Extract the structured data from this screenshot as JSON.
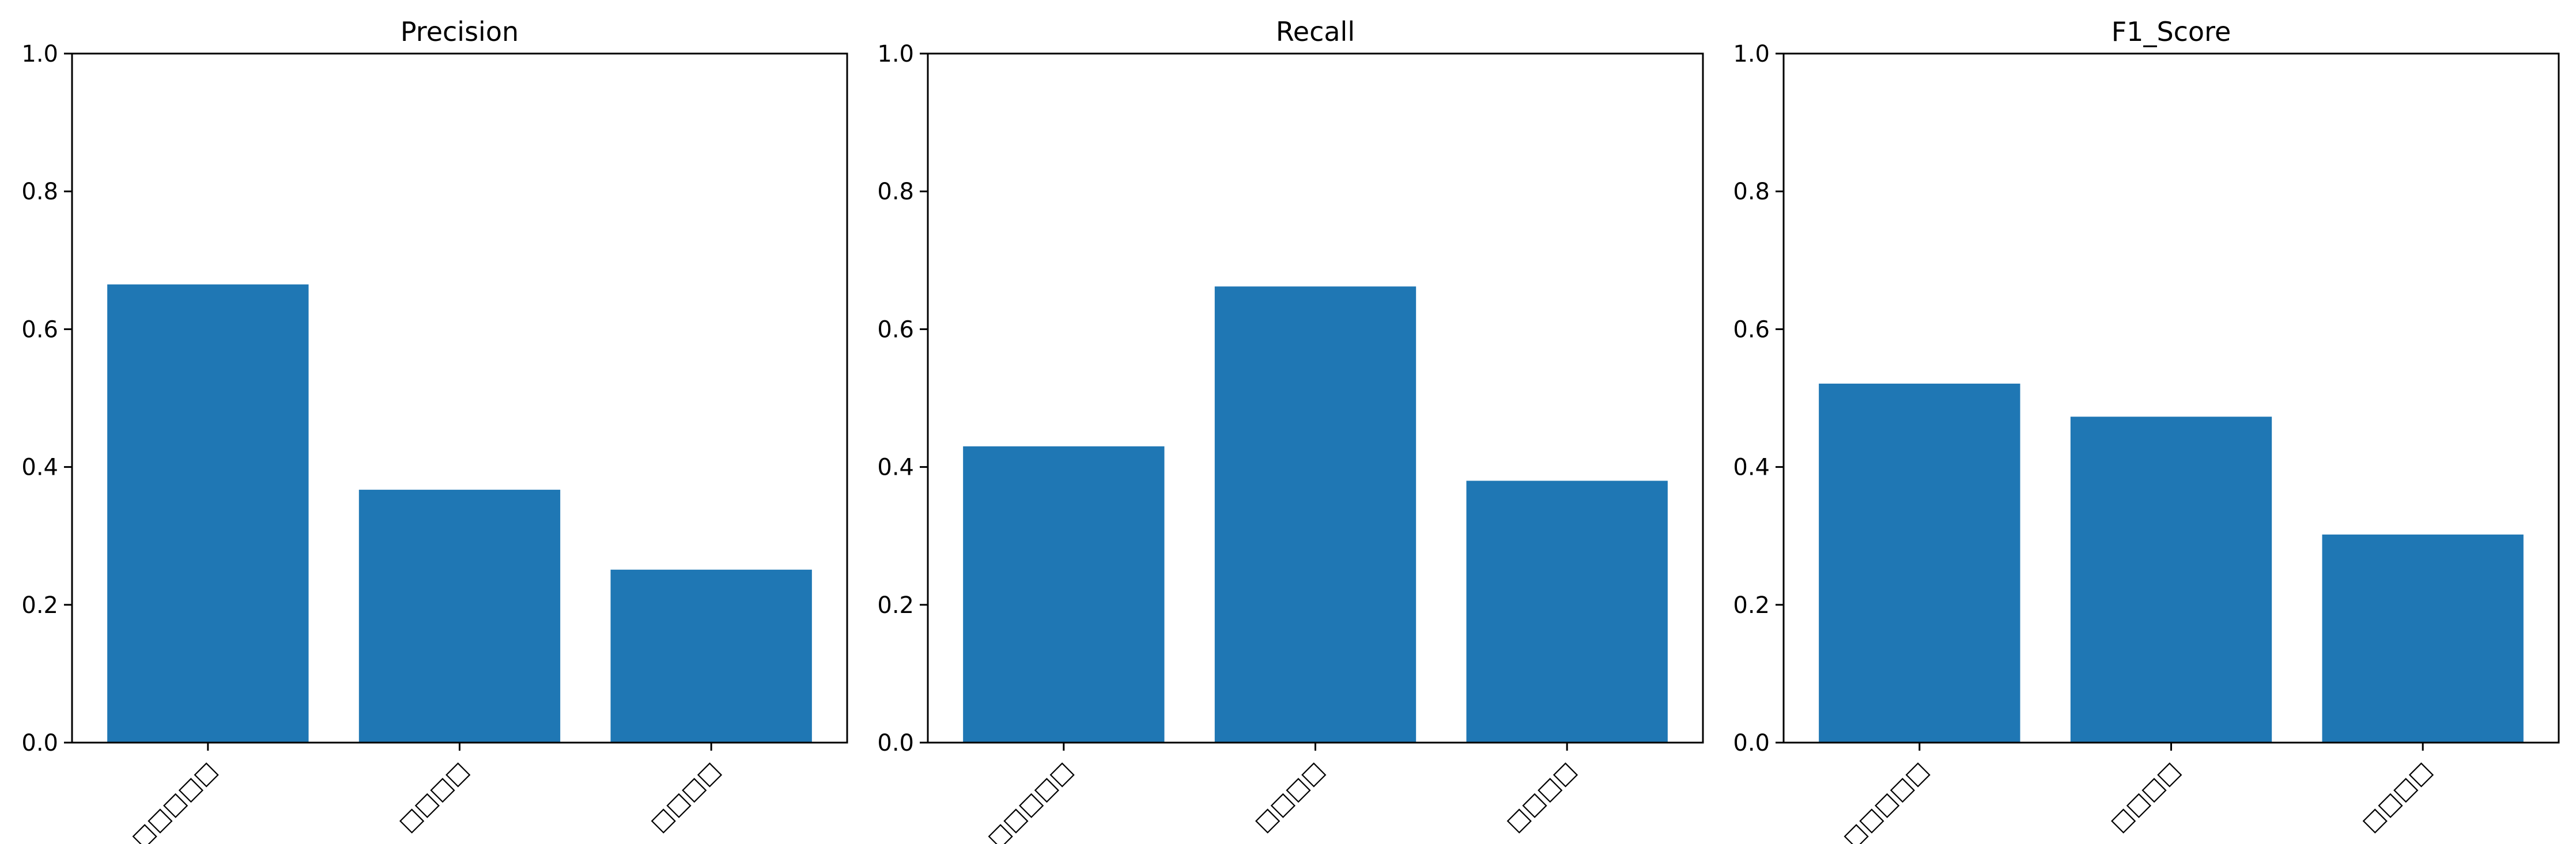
{
  "colors": {
    "bar": "#1f77b4",
    "background": "#ffffff",
    "axis": "#000000"
  },
  "chart_data": [
    {
      "type": "bar",
      "title": "Precision",
      "categories": [
        "□□□□□",
        "□□□□",
        "□□□□"
      ],
      "values": [
        0.665,
        0.367,
        0.251
      ],
      "ylim": [
        0,
        1.0
      ],
      "yticks": [
        "0.0",
        "0.2",
        "0.4",
        "0.6",
        "0.8",
        "1.0"
      ],
      "grid": false,
      "xlabel": "",
      "ylabel": ""
    },
    {
      "type": "bar",
      "title": "Recall",
      "categories": [
        "□□□□□",
        "□□□□",
        "□□□□"
      ],
      "values": [
        0.43,
        0.662,
        0.38
      ],
      "ylim": [
        0,
        1.0
      ],
      "yticks": [
        "0.0",
        "0.2",
        "0.4",
        "0.6",
        "0.8",
        "1.0"
      ],
      "grid": false,
      "xlabel": "",
      "ylabel": ""
    },
    {
      "type": "bar",
      "title": "F1_Score",
      "categories": [
        "□□□□□",
        "□□□□",
        "□□□□"
      ],
      "values": [
        0.521,
        0.473,
        0.302
      ],
      "ylim": [
        0,
        1.0
      ],
      "yticks": [
        "0.0",
        "0.2",
        "0.4",
        "0.6",
        "0.8",
        "1.0"
      ],
      "grid": false,
      "xlabel": "",
      "ylabel": ""
    }
  ]
}
